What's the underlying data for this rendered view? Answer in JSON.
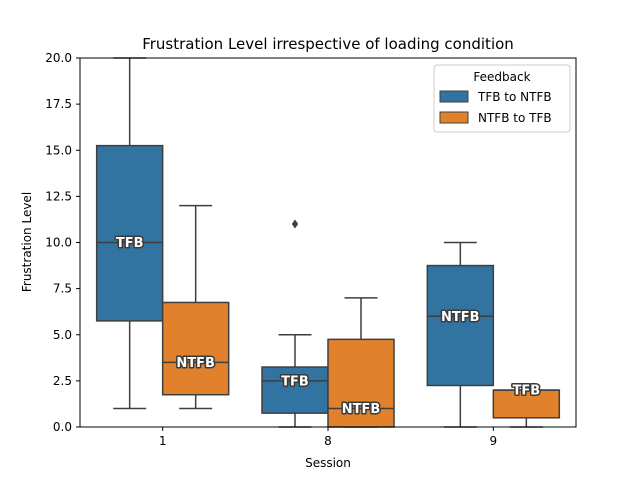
{
  "chart_data": {
    "type": "box",
    "title": "Frustration Level irrespective of loading condition",
    "xlabel": "Session",
    "ylabel": "Frustration Level",
    "categories": [
      "1",
      "8",
      "9"
    ],
    "ylim": [
      0,
      20
    ],
    "yticks": [
      "0.0",
      "2.5",
      "5.0",
      "7.5",
      "10.0",
      "12.5",
      "15.0",
      "17.5",
      "20.0"
    ],
    "grid": false,
    "legend": {
      "title": "Feedback",
      "position": "top-right"
    },
    "series": [
      {
        "name": "TFB to NTFB",
        "color": "#3274a1",
        "boxes": [
          {
            "category": "1",
            "whisker_low": 1.0,
            "q1": 5.75,
            "median": 10.0,
            "q3": 15.25,
            "whisker_high": 20.0,
            "outliers": [],
            "label": "TFB"
          },
          {
            "category": "8",
            "whisker_low": 0.0,
            "q1": 0.75,
            "median": 2.5,
            "q3": 3.25,
            "whisker_high": 5.0,
            "outliers": [
              11.0
            ],
            "label": "TFB"
          },
          {
            "category": "9",
            "whisker_low": 0.0,
            "q1": 2.25,
            "median": 6.0,
            "q3": 8.75,
            "whisker_high": 10.0,
            "outliers": [],
            "label": "NTFB"
          }
        ]
      },
      {
        "name": "NTFB to TFB",
        "color": "#e1812c",
        "boxes": [
          {
            "category": "1",
            "whisker_low": 1.0,
            "q1": 1.75,
            "median": 3.5,
            "q3": 6.75,
            "whisker_high": 12.0,
            "outliers": [],
            "label": "NTFB"
          },
          {
            "category": "8",
            "whisker_low": 0.0,
            "q1": 0.0,
            "median": 1.0,
            "q3": 4.75,
            "whisker_high": 7.0,
            "outliers": [],
            "label": "NTFB"
          },
          {
            "category": "9",
            "whisker_low": 0.0,
            "q1": 0.5,
            "median": 2.0,
            "q3": 2.0,
            "whisker_high": 2.0,
            "outliers": [],
            "label": "TFB"
          }
        ]
      }
    ]
  }
}
